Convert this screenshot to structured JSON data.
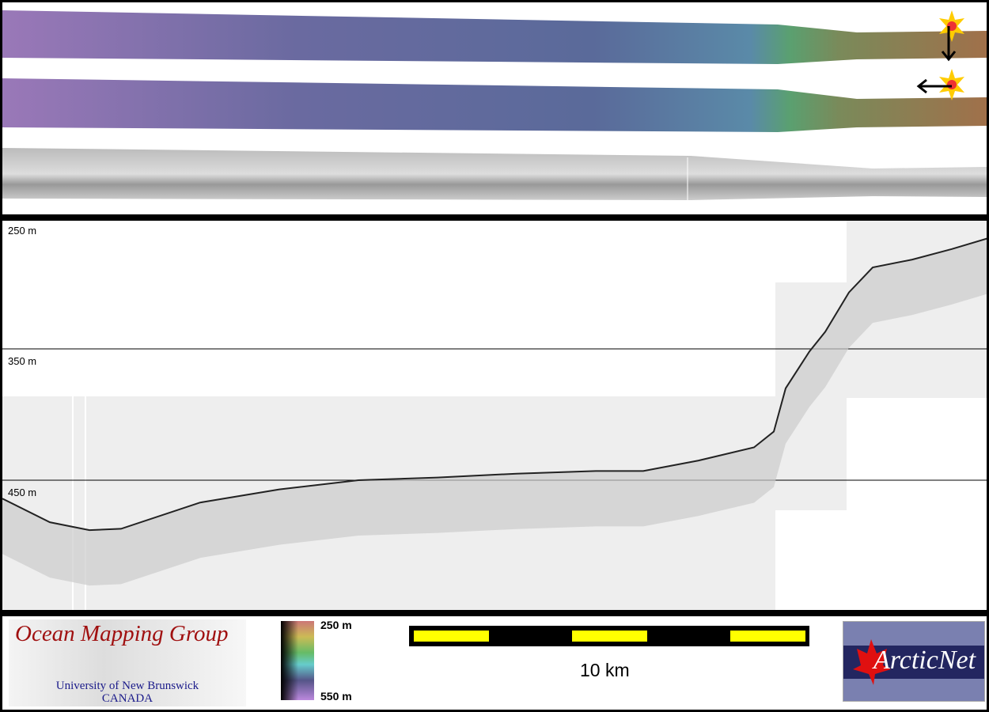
{
  "maps": {
    "strips": [
      "shaded-relief-sun-north",
      "shaded-relief-sun-east",
      "backscatter"
    ],
    "icons": [
      "sun-arrow-down-icon",
      "sun-arrow-left-icon"
    ]
  },
  "profile": {
    "depth_labels": [
      "250 m",
      "350 m",
      "450 m"
    ],
    "depth_lines_m": [
      350,
      450
    ],
    "seafloor": {
      "distance_km": [
        0,
        1.2,
        2.2,
        3,
        5,
        7,
        9,
        11,
        13,
        15,
        16.2,
        17.6,
        19,
        19.5,
        19.8,
        20.4,
        20.8,
        21.4,
        22,
        23,
        24,
        25
      ],
      "depth_m": [
        464,
        482,
        488,
        487,
        467,
        457,
        450,
        448,
        445,
        443,
        443,
        435,
        425,
        413,
        380,
        352,
        337,
        307,
        288,
        282,
        274,
        265
      ]
    }
  },
  "footer": {
    "omg": {
      "title": "Ocean Mapping Group",
      "line1": "University of New Brunswick",
      "line2": "CANADA"
    },
    "colorbar": {
      "top": "250 m",
      "bottom": "550 m"
    },
    "scale": {
      "label": "10 km",
      "color": "#ffff00"
    },
    "arcticnet": {
      "name": "ArcticNet",
      "leaf_color": "#e01010",
      "bg": "#232660"
    }
  }
}
